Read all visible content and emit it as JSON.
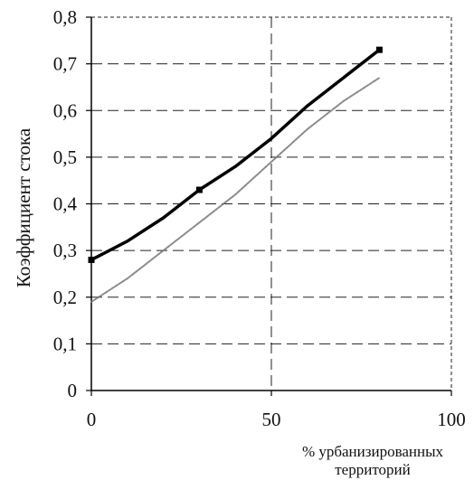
{
  "chart_data": {
    "type": "line",
    "title": "",
    "xlabel": "% урбанизированных территорий",
    "xlabel_lines": [
      "% урбанизированных",
      "территорий"
    ],
    "ylabel": "Коэффициент стока",
    "xlim": [
      0,
      100
    ],
    "ylim": [
      0,
      0.8
    ],
    "x_ticks": [
      0,
      50,
      100
    ],
    "y_ticks": [
      0,
      0.1,
      0.2,
      0.3,
      0.4,
      0.5,
      0.6,
      0.7,
      0.8
    ],
    "x_tick_labels": [
      "0",
      "50",
      "100"
    ],
    "y_tick_labels": [
      "0",
      "0,1",
      "0,2",
      "0,3",
      "0,4",
      "0,5",
      "0,6",
      "0,7",
      "0,8"
    ],
    "grid": true,
    "series": [
      {
        "color": "#000000",
        "style": "solid-thick",
        "x": [
          0,
          10,
          20,
          25,
          30,
          40,
          50,
          60,
          70,
          80
        ],
        "y": [
          0.28,
          0.32,
          0.37,
          0.4,
          0.43,
          0.48,
          0.54,
          0.61,
          0.67,
          0.73
        ]
      },
      {
        "color": "#777777",
        "style": "thin-light",
        "x": [
          0,
          10,
          20,
          30,
          40,
          50,
          60,
          70,
          80
        ],
        "y": [
          0.19,
          0.24,
          0.3,
          0.36,
          0.42,
          0.49,
          0.56,
          0.62,
          0.67
        ]
      }
    ]
  }
}
